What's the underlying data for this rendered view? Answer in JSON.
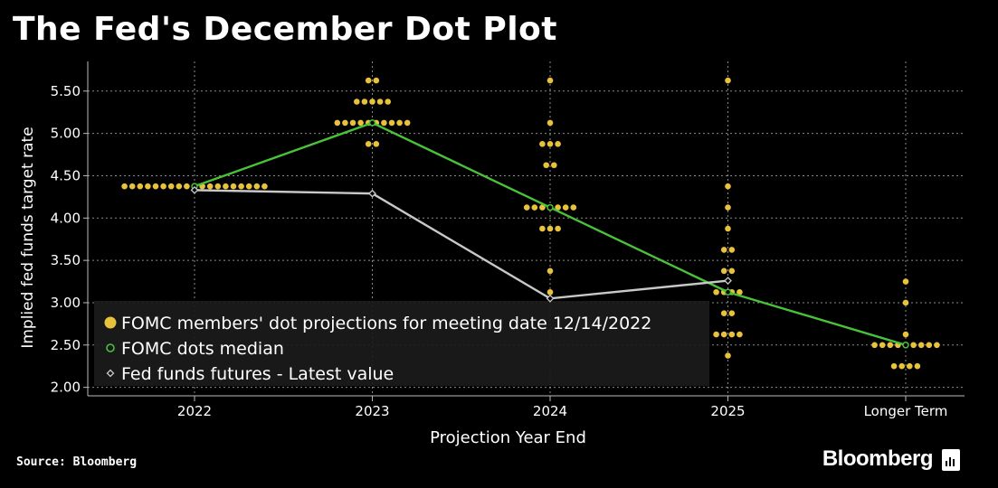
{
  "title": "The Fed's December Dot Plot",
  "source": "Source: Bloomberg",
  "brand": "Bloomberg",
  "chart_data": {
    "type": "scatter",
    "xlabel": "Projection Year End",
    "ylabel": "Implied fed funds target rate",
    "categories": [
      "2022",
      "2023",
      "2024",
      "2025",
      "Longer Term"
    ],
    "ylim": [
      1.9,
      5.85
    ],
    "yticks": [
      "2.00",
      "2.50",
      "3.00",
      "3.50",
      "4.00",
      "4.50",
      "5.00",
      "5.50"
    ],
    "dots": [
      {
        "category": "2022",
        "points": [
          {
            "rate": 4.375,
            "count": 19
          }
        ]
      },
      {
        "category": "2023",
        "points": [
          {
            "rate": 5.625,
            "count": 2
          },
          {
            "rate": 5.375,
            "count": 5
          },
          {
            "rate": 5.125,
            "count": 10
          },
          {
            "rate": 4.875,
            "count": 2
          }
        ]
      },
      {
        "category": "2024",
        "points": [
          {
            "rate": 5.625,
            "count": 1
          },
          {
            "rate": 5.125,
            "count": 1
          },
          {
            "rate": 4.875,
            "count": 3
          },
          {
            "rate": 4.625,
            "count": 2
          },
          {
            "rate": 4.125,
            "count": 7
          },
          {
            "rate": 3.875,
            "count": 3
          },
          {
            "rate": 3.375,
            "count": 1
          },
          {
            "rate": 3.125,
            "count": 1
          }
        ]
      },
      {
        "category": "2025",
        "points": [
          {
            "rate": 5.625,
            "count": 1
          },
          {
            "rate": 4.375,
            "count": 1
          },
          {
            "rate": 4.125,
            "count": 1
          },
          {
            "rate": 3.875,
            "count": 1
          },
          {
            "rate": 3.625,
            "count": 2
          },
          {
            "rate": 3.375,
            "count": 2
          },
          {
            "rate": 3.125,
            "count": 4
          },
          {
            "rate": 2.875,
            "count": 2
          },
          {
            "rate": 2.625,
            "count": 4
          },
          {
            "rate": 2.375,
            "count": 1
          }
        ]
      },
      {
        "category": "Longer Term",
        "points": [
          {
            "rate": 3.25,
            "count": 1
          },
          {
            "rate": 3.0,
            "count": 1
          },
          {
            "rate": 2.625,
            "count": 1
          },
          {
            "rate": 2.5,
            "count": 9
          },
          {
            "rate": 2.25,
            "count": 4
          }
        ]
      }
    ],
    "series": [
      {
        "name": "FOMC dots median",
        "color": "#49c23a",
        "values": [
          4.375,
          5.125,
          4.125,
          3.125,
          2.5
        ]
      },
      {
        "name": "Fed funds futures - Latest value",
        "color": "#c8c8c8",
        "values": [
          4.33,
          4.29,
          3.05,
          3.26,
          null
        ]
      }
    ],
    "legend": [
      {
        "label": "FOMC members' dot projections for meeting date 12/14/2022",
        "marker": "dot",
        "color": "#e8c23a"
      },
      {
        "label": "FOMC dots median",
        "marker": "ring",
        "color": "#49c23a"
      },
      {
        "label": "Fed funds futures - Latest value",
        "marker": "diamond",
        "color": "#c8c8c8"
      }
    ],
    "legend_position": "bottom-left",
    "dot_color": "#e8c23a"
  }
}
